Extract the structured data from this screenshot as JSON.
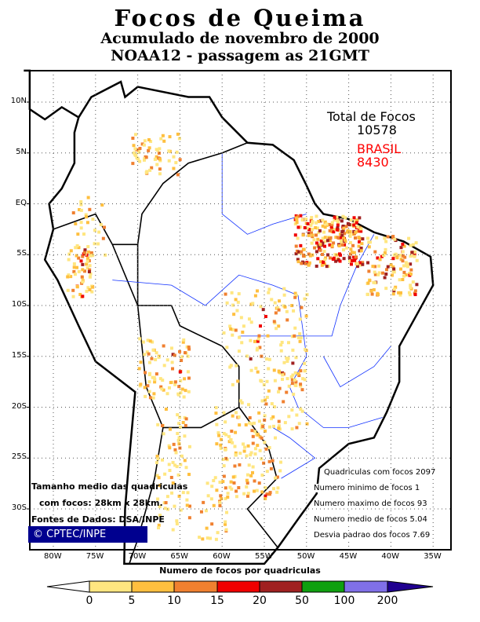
{
  "title": {
    "line1": "Focos de Queima",
    "line2": "Acumulado de novembro de 2000",
    "line3": "NOAA12 - passagem as 21GMT"
  },
  "totals": {
    "label": "Total de Focos",
    "total": "10578",
    "country": "BRASIL",
    "country_total": "8430",
    "country_color": "#ff0000"
  },
  "lat_labels": [
    "10N",
    "5N",
    "EQ",
    "5S",
    "10S",
    "15S",
    "20S",
    "25S",
    "30S"
  ],
  "lon_labels": [
    "80W",
    "75W",
    "70W",
    "65W",
    "60W",
    "55W",
    "50W",
    "45W",
    "40W",
    "35W"
  ],
  "stats": [
    "Quadriculas com focos 2097",
    "Numero minimo de focos 1",
    "Numero maximo de focos 93",
    "Numero medio de focos 5.04",
    "Desvia padrao dos focos 7.69"
  ],
  "notes": {
    "line1": "Tamanho medio das quadriculas",
    "line2": "com focos: 28km x 28km.",
    "line3": "Fontes de Dados: DSA/INPE",
    "copyright": "© CPTEC/INPE"
  },
  "colorbar": {
    "title": "Numero de focos por quadriculas",
    "labels": [
      "0",
      "5",
      "10",
      "15",
      "20",
      "50",
      "100",
      "200"
    ],
    "colors": [
      "#ffffff",
      "#ffe680",
      "#ffbf3f",
      "#f08030",
      "#f00000",
      "#a02020",
      "#10a010",
      "#8070e8",
      "#200090"
    ]
  }
}
